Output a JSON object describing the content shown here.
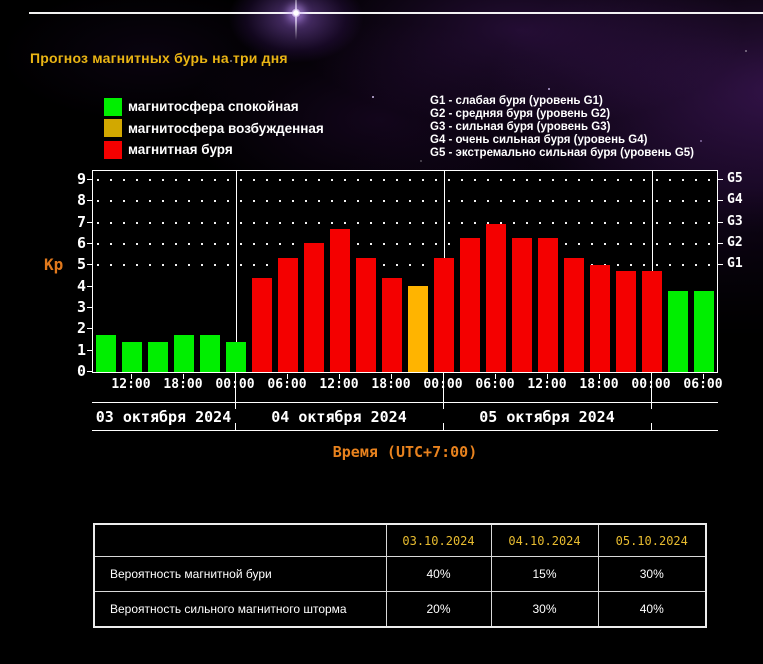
{
  "page": {
    "title": "Прогноз магнитных бурь на три дня"
  },
  "colors": {
    "quiet": "#00ef00",
    "excited_bar": "#ffb400",
    "excited_legend": "#d2a800",
    "storm": "#f40000",
    "title": "#eab514",
    "kp_label": "#e0781c",
    "axis_text": "#ffffff",
    "time_axis_title": "#e8821e",
    "table_date": "#e8bc30"
  },
  "legend": {
    "items": [
      {
        "label": "магнитосфера спокойная",
        "color": "#00ef00"
      },
      {
        "label": "магнитосфера возбужденная",
        "color": "#d2a800"
      },
      {
        "label": "магнитная буря",
        "color": "#f40000"
      }
    ]
  },
  "storm_levels": {
    "lines": [
      "G1 - слабая буря (уровень G1)",
      "G2 - средняя буря (уровень G2)",
      "G3 - сильная буря (уровень G3)",
      "G4 - очень сильная буря (уровень G4)",
      "G5 - экстремально сильная буря (уровень G5)"
    ]
  },
  "chart_data": {
    "type": "bar",
    "ylabel": "Kp",
    "xlabel": "Время (UTC+7:00)",
    "ylim": [
      0,
      9
    ],
    "y_ticks": [
      0,
      1,
      2,
      3,
      4,
      5,
      6,
      7,
      8,
      9
    ],
    "grid_levels": [
      5,
      6,
      7,
      8,
      9
    ],
    "right_axis": [
      {
        "label": "G1",
        "value": 5
      },
      {
        "label": "G2",
        "value": 6
      },
      {
        "label": "G3",
        "value": 7
      },
      {
        "label": "G4",
        "value": 8
      },
      {
        "label": "G5",
        "value": 9
      }
    ],
    "kp_values": [
      1.75,
      1.4,
      1.4,
      1.75,
      1.75,
      1.4,
      4.4,
      5.35,
      6.05,
      6.7,
      5.35,
      4.4,
      4.05,
      5.35,
      6.3,
      6.95,
      6.3,
      6.3,
      5.35,
      5.0,
      4.75,
      4.75,
      3.8,
      3.8
    ],
    "bar_states": [
      "quiet",
      "quiet",
      "quiet",
      "quiet",
      "quiet",
      "quiet",
      "storm",
      "storm",
      "storm",
      "storm",
      "storm",
      "storm",
      "excited",
      "storm",
      "storm",
      "storm",
      "storm",
      "storm",
      "storm",
      "storm",
      "storm",
      "storm",
      "quiet",
      "quiet"
    ],
    "x_ticks": [
      {
        "bar_index": 1,
        "label": "12:00"
      },
      {
        "bar_index": 3,
        "label": "18:00"
      },
      {
        "bar_index": 5,
        "label": "00:00",
        "day_boundary": true
      },
      {
        "bar_index": 7,
        "label": "06:00"
      },
      {
        "bar_index": 9,
        "label": "12:00"
      },
      {
        "bar_index": 11,
        "label": "18:00"
      },
      {
        "bar_index": 13,
        "label": "00:00",
        "day_boundary": true
      },
      {
        "bar_index": 15,
        "label": "06:00"
      },
      {
        "bar_index": 17,
        "label": "12:00"
      },
      {
        "bar_index": 19,
        "label": "18:00"
      },
      {
        "bar_index": 21,
        "label": "00:00",
        "day_boundary": true
      },
      {
        "bar_index": 23,
        "label": "06:00"
      }
    ],
    "dates": [
      "03 октября 2024",
      "04 октября 2024",
      "05 октября 2024"
    ]
  },
  "table": {
    "headers": [
      "",
      "03.10.2024",
      "04.10.2024",
      "05.10.2024"
    ],
    "rows": [
      {
        "label": "Вероятность магнитной бури",
        "values": [
          "40%",
          "15%",
          "30%"
        ]
      },
      {
        "label": "Вероятность сильного магнитного шторма",
        "values": [
          "20%",
          "30%",
          "40%"
        ]
      }
    ]
  }
}
